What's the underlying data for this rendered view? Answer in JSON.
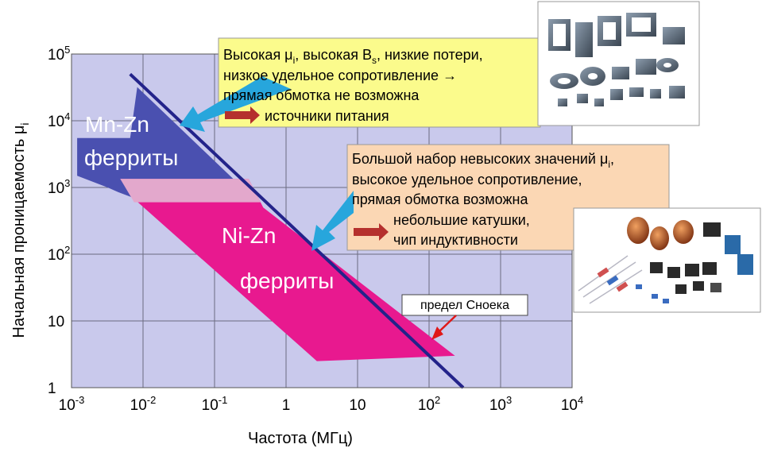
{
  "chart_data": {
    "type": "area",
    "title": "",
    "xlabel": "Частота (МГц)",
    "ylabel_main": "Начальная проницаемость μ",
    "ylabel_sub": "i",
    "x_scale": "log",
    "y_scale": "log",
    "xlim": [
      0.001,
      10000
    ],
    "ylim": [
      1,
      100000
    ],
    "grid": true,
    "x_ticks": [
      {
        "base": "10",
        "exp": "-3",
        "value": 0.001
      },
      {
        "base": "10",
        "exp": "-2",
        "value": 0.01
      },
      {
        "base": "10",
        "exp": "-1",
        "value": 0.1
      },
      {
        "base": "1",
        "exp": "",
        "value": 1
      },
      {
        "base": "10",
        "exp": "",
        "value": 10
      },
      {
        "base": "10",
        "exp": "2",
        "value": 100
      },
      {
        "base": "10",
        "exp": "3",
        "value": 1000
      },
      {
        "base": "10",
        "exp": "4",
        "value": 10000
      }
    ],
    "y_ticks": [
      {
        "base": "10",
        "exp": "5",
        "value": 100000
      },
      {
        "base": "10",
        "exp": "4",
        "value": 10000
      },
      {
        "base": "10",
        "exp": "3",
        "value": 1000
      },
      {
        "base": "10",
        "exp": "2",
        "value": 100
      },
      {
        "base": "10",
        "exp": "",
        "value": 10
      },
      {
        "base": "1",
        "exp": "",
        "value": 1
      }
    ],
    "snoek_limit": {
      "label": "предел Сноека",
      "points": [
        [
          0.0066,
          50000
        ],
        [
          300,
          1
        ]
      ]
    },
    "regions": [
      {
        "name_line1": "Mn-Zn",
        "name_line2": "ферриты",
        "color": "#4a50b0",
        "polygon": [
          [
            0.0012,
            5500
          ],
          [
            0.0066,
            5500
          ],
          [
            0.0083,
            32000
          ],
          [
            0.27,
            900
          ],
          [
            0.3,
            700
          ],
          [
            0.0073,
            700
          ],
          [
            0.0045,
            850
          ],
          [
            0.0032,
            1000
          ],
          [
            0.0012,
            1500
          ]
        ]
      },
      {
        "name_line1": "Ni-Zn",
        "name_line2": "ферриты",
        "color": "#e8198f",
        "polygon": [
          [
            0.0048,
            1350
          ],
          [
            0.3,
            1350
          ],
          [
            0.48,
            500
          ],
          [
            230,
            3
          ],
          [
            2.7,
            2.5
          ],
          [
            0.0072,
            700
          ]
        ]
      }
    ]
  },
  "callouts": {
    "mnzn": {
      "lines": [
        {
          "parts": [
            {
              "t": "Высокая μ"
            },
            {
              "t": "i",
              "sub": true
            },
            {
              "t": ", высокая B"
            },
            {
              "t": "s",
              "sub": true
            },
            {
              "t": ", низкие потери,"
            }
          ]
        },
        {
          "parts": [
            {
              "t": "низкое удельное сопротивление →"
            }
          ]
        },
        {
          "parts": [
            {
              "t": "прямая обмотка не возможна"
            }
          ]
        }
      ],
      "result": "источники питания",
      "bg": "#fbfb8c"
    },
    "nizn": {
      "lines": [
        {
          "parts": [
            {
              "t": "Большой набор невысоких значений μ"
            },
            {
              "t": "i",
              "sub": true
            },
            {
              "t": ","
            }
          ]
        },
        {
          "parts": [
            {
              "t": "высокое  удельное сопротивление,"
            }
          ]
        },
        {
          "parts": [
            {
              "t": "прямая обмотка  возможна"
            }
          ]
        }
      ],
      "result_lines": [
        "небольшие катушки,",
        "чип  индуктивности"
      ],
      "bg": "#fbd7b4"
    }
  },
  "colors": {
    "plot_bg": "#c9c9ec",
    "grid": "#6c6c80",
    "snoek_line": "#23238a",
    "callout_arrow": "#27a6dc",
    "result_arrow": "#b5302d",
    "pointer_arrow": "#e01818"
  },
  "images": {
    "cores_photo": "ferrite-cores-photo",
    "inductors_photo": "inductors-photo"
  }
}
